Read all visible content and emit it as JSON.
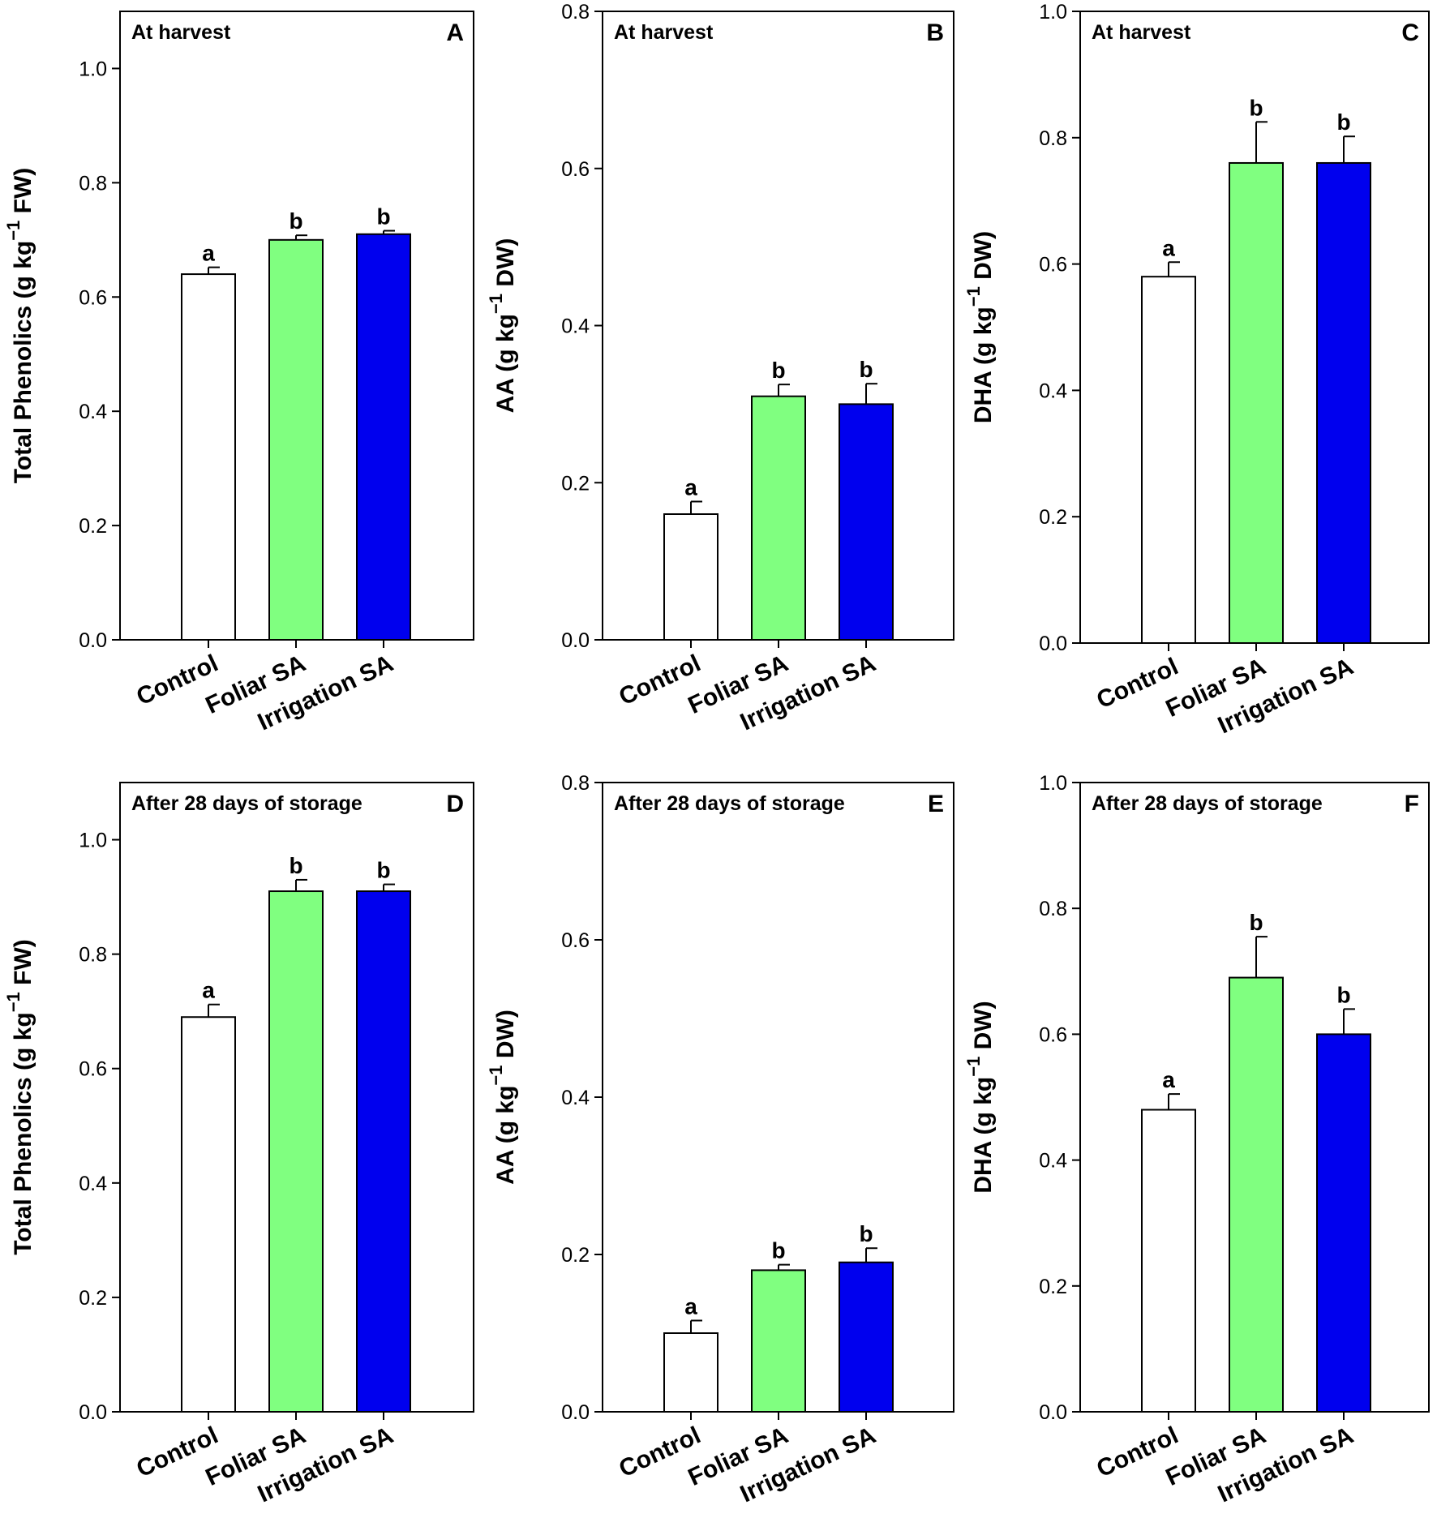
{
  "chart_data": [
    {
      "type": "bar",
      "panel": "A",
      "title": "At harvest",
      "ylabel": {
        "pre": "Total Phenolics (g kg",
        "sup": "−1",
        "post": " FW)"
      },
      "ylim": [
        0,
        1.1
      ],
      "yticks": [
        "0.0",
        "0.2",
        "0.4",
        "0.6",
        "0.8",
        "1.0"
      ],
      "categories": [
        "Control",
        "Foliar SA",
        "Irrigation SA"
      ],
      "values": [
        0.64,
        0.7,
        0.71
      ],
      "errors": [
        0.012,
        0.008,
        0.006
      ],
      "letters": [
        "a",
        "b",
        "b"
      ]
    },
    {
      "type": "bar",
      "panel": "B",
      "title": "At harvest",
      "ylabel": {
        "pre": "AA (g kg",
        "sup": "−1",
        "post": " DW)"
      },
      "ylim": [
        0,
        0.8
      ],
      "yticks": [
        "0.0",
        "0.2",
        "0.4",
        "0.6",
        "0.8"
      ],
      "categories": [
        "Control",
        "Foliar SA",
        "Irrigation SA"
      ],
      "values": [
        0.16,
        0.31,
        0.3
      ],
      "errors": [
        0.016,
        0.015,
        0.026
      ],
      "letters": [
        "a",
        "b",
        "b"
      ]
    },
    {
      "type": "bar",
      "panel": "C",
      "title": "At harvest",
      "ylabel": {
        "pre": "DHA (g kg",
        "sup": "−1",
        "post": " DW)"
      },
      "ylim": [
        0,
        1.0
      ],
      "yticks": [
        "0.0",
        "0.2",
        "0.4",
        "0.6",
        "0.8",
        "1.0"
      ],
      "categories": [
        "Control",
        "Foliar SA",
        "Irrigation SA"
      ],
      "values": [
        0.58,
        0.76,
        0.76
      ],
      "errors": [
        0.023,
        0.065,
        0.042
      ],
      "letters": [
        "a",
        "b",
        "b"
      ]
    },
    {
      "type": "bar",
      "panel": "D",
      "title": "After 28 days of storage",
      "ylabel": {
        "pre": "Total Phenolics (g kg",
        "sup": "−1",
        "post": " FW)"
      },
      "ylim": [
        0,
        1.1
      ],
      "yticks": [
        "0.0",
        "0.2",
        "0.4",
        "0.6",
        "0.8",
        "1.0"
      ],
      "categories": [
        "Control",
        "Foliar SA",
        "Irrigation SA"
      ],
      "values": [
        0.69,
        0.91,
        0.91
      ],
      "errors": [
        0.022,
        0.02,
        0.012
      ],
      "letters": [
        "a",
        "b",
        "b"
      ]
    },
    {
      "type": "bar",
      "panel": "E",
      "title": "After 28 days of storage",
      "ylabel": {
        "pre": "AA (g kg",
        "sup": "−1",
        "post": " DW)"
      },
      "ylim": [
        0,
        0.8
      ],
      "yticks": [
        "0.0",
        "0.2",
        "0.4",
        "0.6",
        "0.8"
      ],
      "categories": [
        "Control",
        "Foliar SA",
        "Irrigation SA"
      ],
      "values": [
        0.1,
        0.18,
        0.19
      ],
      "errors": [
        0.016,
        0.007,
        0.018
      ],
      "letters": [
        "a",
        "b",
        "b"
      ]
    },
    {
      "type": "bar",
      "panel": "F",
      "title": "After 28 days of storage",
      "ylabel": {
        "pre": "DHA (g kg",
        "sup": "−1",
        "post": " DW)"
      },
      "ylim": [
        0,
        1.0
      ],
      "yticks": [
        "0.0",
        "0.2",
        "0.4",
        "0.6",
        "0.8",
        "1.0"
      ],
      "categories": [
        "Control",
        "Foliar SA",
        "Irrigation SA"
      ],
      "values": [
        0.48,
        0.69,
        0.6
      ],
      "errors": [
        0.025,
        0.065,
        0.04
      ],
      "letters": [
        "a",
        "b",
        "b"
      ]
    }
  ],
  "colors": {
    "bars": [
      "#ffffff",
      "#80ff80",
      "#0000ee"
    ],
    "stroke": "#000000"
  }
}
